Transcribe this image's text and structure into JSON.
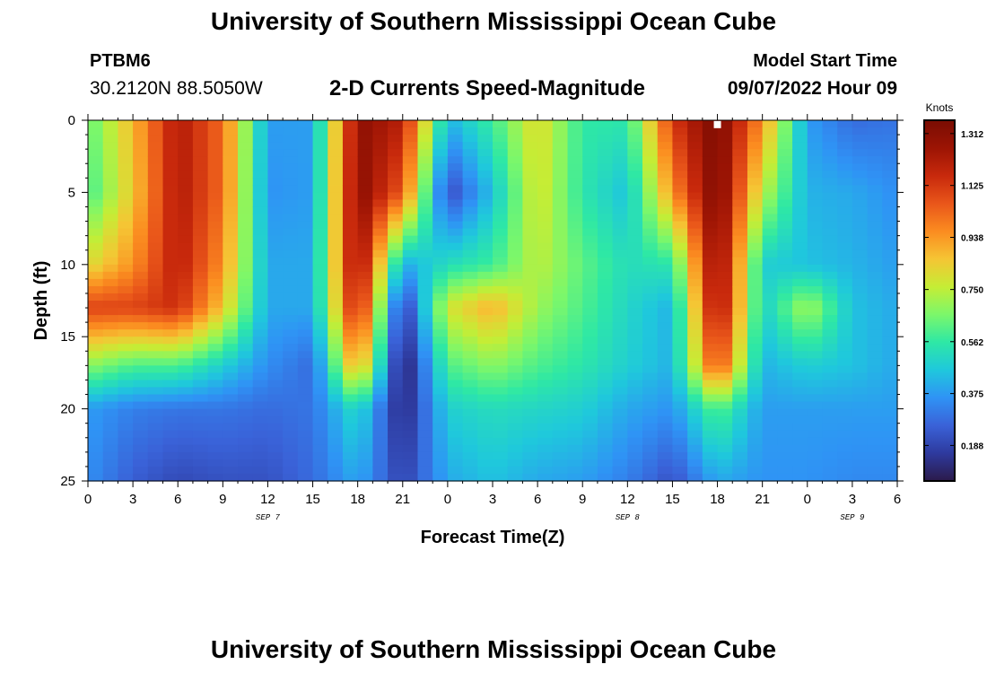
{
  "header": {
    "title": "University of Southern Mississippi Ocean Cube",
    "station": "PTBM6",
    "coordinates": "30.2120N  88.5050W",
    "plot_title": "2-D Currents Speed-Magnitude",
    "model_start_label": "Model Start Time",
    "model_start_value": "09/07/2022 Hour 09"
  },
  "footer": {
    "title": "University of Southern Mississippi Ocean Cube"
  },
  "chart_data": {
    "type": "heatmap",
    "xlabel": "Forecast Time(Z)",
    "ylabel": "Depth (ft)",
    "colorbar_label": "Knots",
    "x_tick_labels": [
      "0",
      "3",
      "6",
      "9",
      "12",
      "15",
      "18",
      "21",
      "0",
      "3",
      "6",
      "9",
      "12",
      "15",
      "18",
      "21",
      "0",
      "3",
      "6"
    ],
    "x_range_hours": [
      0,
      54
    ],
    "date_labels": [
      {
        "label": "SEP 7",
        "hour": 12
      },
      {
        "label": "SEP 8",
        "hour": 36
      },
      {
        "label": "SEP 9",
        "hour": 51
      }
    ],
    "y_ticks": [
      0,
      5,
      10,
      15,
      20,
      25
    ],
    "y_range_ft": [
      0,
      25
    ],
    "y_inverted": true,
    "colorbar_ticks": [
      0.188,
      0.375,
      0.562,
      0.75,
      0.938,
      1.125,
      1.312
    ],
    "colorbar_range": [
      0.06,
      1.36
    ],
    "colormap": [
      "#2b1a4a",
      "#2e3a9e",
      "#3a62d8",
      "#2f93f5",
      "#1fc8dc",
      "#2ee8a5",
      "#7cf76a",
      "#c5ed35",
      "#f5c534",
      "#fb8c20",
      "#e9561a",
      "#c8290c",
      "#9c1404",
      "#7a0d03"
    ],
    "speed_grid_times_h": [
      0,
      3,
      6,
      9,
      12,
      15,
      18,
      21,
      24,
      27,
      30,
      33,
      36,
      39,
      42,
      45,
      48,
      51,
      54
    ],
    "speed_grid_depths_ft": [
      0,
      5,
      10,
      13,
      17,
      20,
      25
    ],
    "speed_knots": [
      [
        0.62,
        0.88,
        1.22,
        1.02,
        0.38,
        0.38,
        1.3,
        1.2,
        0.42,
        0.58,
        0.82,
        0.56,
        0.55,
        1.12,
        1.36,
        0.95,
        0.38,
        0.28,
        0.3
      ],
      [
        0.58,
        0.85,
        1.22,
        1.02,
        0.36,
        0.38,
        1.32,
        1.05,
        0.2,
        0.45,
        0.8,
        0.55,
        0.45,
        0.95,
        1.36,
        0.75,
        0.42,
        0.4,
        0.35
      ],
      [
        0.8,
        0.95,
        1.2,
        0.95,
        0.4,
        0.4,
        1.3,
        0.4,
        0.52,
        0.58,
        0.75,
        0.62,
        0.52,
        0.55,
        1.32,
        0.48,
        0.45,
        0.42,
        0.38
      ],
      [
        1.1,
        1.1,
        1.15,
        0.85,
        0.4,
        0.4,
        1.22,
        0.15,
        0.78,
        0.9,
        0.7,
        0.6,
        0.5,
        0.42,
        1.28,
        0.48,
        0.72,
        0.45,
        0.4
      ],
      [
        0.68,
        0.6,
        0.6,
        0.48,
        0.35,
        0.28,
        0.95,
        0.06,
        0.6,
        0.68,
        0.6,
        0.55,
        0.48,
        0.42,
        1.1,
        0.42,
        0.48,
        0.45,
        0.4
      ],
      [
        0.38,
        0.32,
        0.3,
        0.3,
        0.28,
        0.3,
        0.52,
        0.1,
        0.48,
        0.52,
        0.5,
        0.48,
        0.4,
        0.36,
        0.62,
        0.38,
        0.38,
        0.38,
        0.38
      ],
      [
        0.35,
        0.25,
        0.2,
        0.22,
        0.22,
        0.28,
        0.4,
        0.18,
        0.4,
        0.45,
        0.4,
        0.38,
        0.32,
        0.22,
        0.4,
        0.36,
        0.36,
        0.34,
        0.34
      ]
    ],
    "marker": {
      "hour": 42,
      "depth_ft": 0.3
    }
  }
}
